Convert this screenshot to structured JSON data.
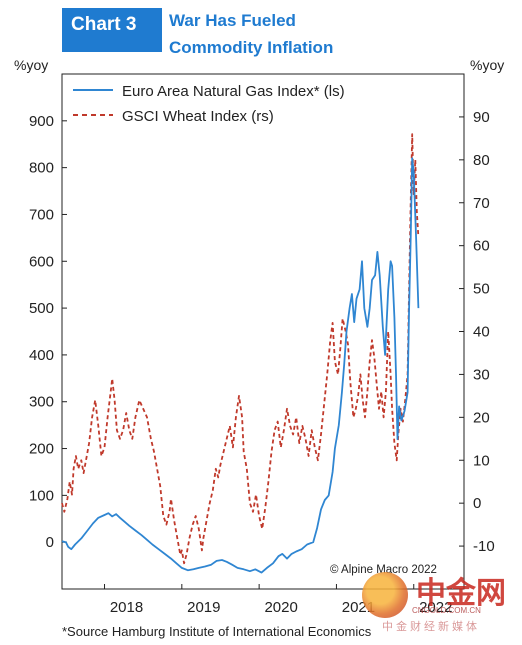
{
  "header": {
    "chart_number": "Chart 3",
    "title_line1": "War Has Fueled",
    "title_line2": "Commodity Inflation"
  },
  "footer": {
    "source": "*Source Hamburg Institute of International Economics",
    "copyright": "© Alpine Macro 2022"
  },
  "watermark": {
    "name": "中金网",
    "domain": "CNGOLD.COM.CN",
    "slogan": "中金财经新媒体"
  },
  "colors": {
    "gas": "#2f86d2",
    "wheat": "#c0392b",
    "title_blue": "#1f7bd0"
  },
  "chart_data": {
    "type": "line",
    "y_left_unit": "%yoy",
    "y_right_unit": "%yoy",
    "y_left_range": [
      -100,
      1000
    ],
    "y_right_range": [
      -20,
      100
    ],
    "y_left_ticks": [
      0,
      100,
      200,
      300,
      400,
      500,
      600,
      700,
      800,
      900
    ],
    "y_right_ticks": [
      -10,
      0,
      10,
      20,
      30,
      40,
      50,
      60,
      70,
      80,
      90
    ],
    "x_range": [
      2017.45,
      2022.65
    ],
    "x_ticks": [
      {
        "label": "2018",
        "x": 2018.0
      },
      {
        "label": "2019",
        "x": 2019.0
      },
      {
        "label": "2020",
        "x": 2020.0
      },
      {
        "label": "2021",
        "x": 2021.0
      },
      {
        "label": "2022",
        "x": 2022.0
      }
    ],
    "legend_position": "top-left",
    "grid": false,
    "series": [
      {
        "name": "Euro Area Natural Gas Index* (ls)",
        "axis": "left",
        "style": "solid",
        "points": [
          [
            2017.45,
            2
          ],
          [
            2017.5,
            0
          ],
          [
            2017.53,
            -10
          ],
          [
            2017.57,
            -15
          ],
          [
            2017.62,
            -5
          ],
          [
            2017.7,
            8
          ],
          [
            2017.78,
            25
          ],
          [
            2017.85,
            40
          ],
          [
            2017.92,
            52
          ],
          [
            2018.0,
            58
          ],
          [
            2018.05,
            62
          ],
          [
            2018.1,
            55
          ],
          [
            2018.15,
            60
          ],
          [
            2018.2,
            52
          ],
          [
            2018.25,
            45
          ],
          [
            2018.32,
            35
          ],
          [
            2018.4,
            25
          ],
          [
            2018.48,
            15
          ],
          [
            2018.55,
            5
          ],
          [
            2018.62,
            -5
          ],
          [
            2018.7,
            -15
          ],
          [
            2018.78,
            -25
          ],
          [
            2018.86,
            -35
          ],
          [
            2018.93,
            -45
          ],
          [
            2019.0,
            -55
          ],
          [
            2019.08,
            -60
          ],
          [
            2019.15,
            -58
          ],
          [
            2019.22,
            -55
          ],
          [
            2019.3,
            -52
          ],
          [
            2019.38,
            -48
          ],
          [
            2019.45,
            -40
          ],
          [
            2019.52,
            -38
          ],
          [
            2019.58,
            -42
          ],
          [
            2019.65,
            -48
          ],
          [
            2019.72,
            -55
          ],
          [
            2019.8,
            -58
          ],
          [
            2019.88,
            -62
          ],
          [
            2019.95,
            -58
          ],
          [
            2020.03,
            -65
          ],
          [
            2020.1,
            -55
          ],
          [
            2020.18,
            -45
          ],
          [
            2020.25,
            -30
          ],
          [
            2020.3,
            -25
          ],
          [
            2020.36,
            -35
          ],
          [
            2020.42,
            -25
          ],
          [
            2020.48,
            -20
          ],
          [
            2020.55,
            -15
          ],
          [
            2020.62,
            -5
          ],
          [
            2020.7,
            0
          ],
          [
            2020.75,
            30
          ],
          [
            2020.8,
            70
          ],
          [
            2020.85,
            90
          ],
          [
            2020.9,
            100
          ],
          [
            2020.95,
            150
          ],
          [
            2020.98,
            200
          ],
          [
            2021.03,
            250
          ],
          [
            2021.07,
            320
          ],
          [
            2021.1,
            380
          ],
          [
            2021.13,
            450
          ],
          [
            2021.17,
            500
          ],
          [
            2021.2,
            530
          ],
          [
            2021.23,
            470
          ],
          [
            2021.26,
            520
          ],
          [
            2021.3,
            540
          ],
          [
            2021.33,
            600
          ],
          [
            2021.36,
            500
          ],
          [
            2021.4,
            460
          ],
          [
            2021.43,
            500
          ],
          [
            2021.46,
            560
          ],
          [
            2021.5,
            570
          ],
          [
            2021.53,
            620
          ],
          [
            2021.56,
            570
          ],
          [
            2021.6,
            460
          ],
          [
            2021.63,
            400
          ],
          [
            2021.67,
            540
          ],
          [
            2021.7,
            600
          ],
          [
            2021.72,
            590
          ],
          [
            2021.75,
            480
          ],
          [
            2021.77,
            360
          ],
          [
            2021.79,
            220
          ],
          [
            2021.81,
            290
          ],
          [
            2021.84,
            260
          ],
          [
            2021.88,
            280
          ],
          [
            2021.92,
            320
          ],
          [
            2021.94,
            500
          ],
          [
            2021.96,
            650
          ],
          [
            2021.98,
            820
          ],
          [
            2022.0,
            790
          ],
          [
            2022.03,
            650
          ],
          [
            2022.06,
            500
          ]
        ]
      },
      {
        "name": "GSCI Wheat Index (rs)",
        "axis": "right",
        "style": "dashed",
        "points": [
          [
            2017.45,
            0
          ],
          [
            2017.48,
            -2
          ],
          [
            2017.52,
            1
          ],
          [
            2017.55,
            5
          ],
          [
            2017.58,
            2
          ],
          [
            2017.6,
            8
          ],
          [
            2017.63,
            11
          ],
          [
            2017.66,
            8
          ],
          [
            2017.7,
            10
          ],
          [
            2017.73,
            7
          ],
          [
            2017.76,
            10
          ],
          [
            2017.8,
            14
          ],
          [
            2017.84,
            20
          ],
          [
            2017.88,
            24
          ],
          [
            2017.92,
            18
          ],
          [
            2017.96,
            11
          ],
          [
            2018.0,
            13
          ],
          [
            2018.04,
            20
          ],
          [
            2018.08,
            26
          ],
          [
            2018.1,
            29
          ],
          [
            2018.13,
            24
          ],
          [
            2018.16,
            17
          ],
          [
            2018.2,
            15
          ],
          [
            2018.24,
            17
          ],
          [
            2018.28,
            21
          ],
          [
            2018.32,
            17
          ],
          [
            2018.36,
            15
          ],
          [
            2018.4,
            20
          ],
          [
            2018.45,
            24
          ],
          [
            2018.5,
            22
          ],
          [
            2018.55,
            20
          ],
          [
            2018.6,
            15
          ],
          [
            2018.64,
            12
          ],
          [
            2018.68,
            8
          ],
          [
            2018.72,
            4
          ],
          [
            2018.76,
            -3
          ],
          [
            2018.8,
            -5
          ],
          [
            2018.84,
            -2
          ],
          [
            2018.86,
            1
          ],
          [
            2018.9,
            -4
          ],
          [
            2018.94,
            -8
          ],
          [
            2018.98,
            -12
          ],
          [
            2019.0,
            -11
          ],
          [
            2019.03,
            -14
          ],
          [
            2019.06,
            -12
          ],
          [
            2019.1,
            -8
          ],
          [
            2019.14,
            -5
          ],
          [
            2019.18,
            -3
          ],
          [
            2019.22,
            -6
          ],
          [
            2019.26,
            -11
          ],
          [
            2019.28,
            -8
          ],
          [
            2019.32,
            -4
          ],
          [
            2019.36,
            0
          ],
          [
            2019.4,
            3
          ],
          [
            2019.44,
            8
          ],
          [
            2019.47,
            6
          ],
          [
            2019.5,
            9
          ],
          [
            2019.54,
            12
          ],
          [
            2019.58,
            15
          ],
          [
            2019.62,
            18
          ],
          [
            2019.66,
            13
          ],
          [
            2019.7,
            20
          ],
          [
            2019.74,
            25
          ],
          [
            2019.78,
            20
          ],
          [
            2019.8,
            12
          ],
          [
            2019.84,
            8
          ],
          [
            2019.88,
            0
          ],
          [
            2019.92,
            -2
          ],
          [
            2019.96,
            2
          ],
          [
            2020.0,
            -3
          ],
          [
            2020.04,
            -6
          ],
          [
            2020.08,
            -1
          ],
          [
            2020.12,
            5
          ],
          [
            2020.16,
            12
          ],
          [
            2020.2,
            17
          ],
          [
            2020.24,
            19
          ],
          [
            2020.28,
            13
          ],
          [
            2020.32,
            17
          ],
          [
            2020.36,
            22
          ],
          [
            2020.4,
            18
          ],
          [
            2020.44,
            16
          ],
          [
            2020.48,
            20
          ],
          [
            2020.52,
            14
          ],
          [
            2020.56,
            18
          ],
          [
            2020.6,
            15
          ],
          [
            2020.64,
            11
          ],
          [
            2020.68,
            17
          ],
          [
            2020.72,
            13
          ],
          [
            2020.76,
            10
          ],
          [
            2020.8,
            16
          ],
          [
            2020.84,
            23
          ],
          [
            2020.88,
            30
          ],
          [
            2020.92,
            38
          ],
          [
            2020.95,
            42
          ],
          [
            2020.98,
            33
          ],
          [
            2021.02,
            30
          ],
          [
            2021.05,
            36
          ],
          [
            2021.08,
            43
          ],
          [
            2021.12,
            40
          ],
          [
            2021.15,
            37
          ],
          [
            2021.18,
            28
          ],
          [
            2021.22,
            20
          ],
          [
            2021.25,
            22
          ],
          [
            2021.28,
            25
          ],
          [
            2021.31,
            30
          ],
          [
            2021.34,
            24
          ],
          [
            2021.37,
            20
          ],
          [
            2021.4,
            26
          ],
          [
            2021.43,
            33
          ],
          [
            2021.46,
            38
          ],
          [
            2021.49,
            34
          ],
          [
            2021.52,
            28
          ],
          [
            2021.55,
            22
          ],
          [
            2021.58,
            26
          ],
          [
            2021.61,
            20
          ],
          [
            2021.64,
            26
          ],
          [
            2021.67,
            40
          ],
          [
            2021.7,
            30
          ],
          [
            2021.72,
            22
          ],
          [
            2021.75,
            14
          ],
          [
            2021.78,
            10
          ],
          [
            2021.8,
            16
          ],
          [
            2021.83,
            22
          ],
          [
            2021.86,
            19
          ],
          [
            2021.89,
            24
          ],
          [
            2021.92,
            30
          ],
          [
            2021.94,
            50
          ],
          [
            2021.96,
            70
          ],
          [
            2021.98,
            86
          ],
          [
            2022.0,
            72
          ],
          [
            2022.02,
            80
          ],
          [
            2022.04,
            68
          ],
          [
            2022.06,
            62
          ]
        ]
      }
    ]
  }
}
